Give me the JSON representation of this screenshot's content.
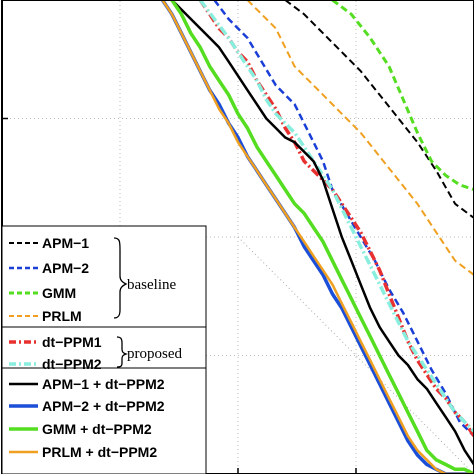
{
  "chart_data": {
    "type": "line",
    "title": "",
    "xlabel": "",
    "ylabel": "",
    "grid": "dotted",
    "xlim": [
      0,
      100
    ],
    "ylim": [
      0,
      100
    ],
    "legend_placement": "lower-left",
    "legend_groups": [
      {
        "label": "baseline",
        "members": [
          "APM−1",
          "APM−2",
          "GMM",
          "PRLM"
        ]
      },
      {
        "label": "proposed",
        "members": [
          "dt−PPM1",
          "dt−PPM2"
        ]
      }
    ],
    "diagonal": {
      "x": [
        50,
        100
      ],
      "y": [
        50,
        0
      ]
    },
    "series": [
      {
        "name": "APM−1",
        "color": "#000000",
        "style": "dashed",
        "width": 2,
        "x": [
          60,
          64,
          68,
          72,
          76,
          80,
          84,
          88,
          92,
          96,
          100
        ],
        "y": [
          100,
          97,
          93,
          89,
          85,
          80,
          75,
          70,
          64,
          57,
          54
        ]
      },
      {
        "name": "APM−2",
        "color": "#1a3fd6",
        "style": "dashed",
        "width": 2.5,
        "x": [
          45,
          48,
          52,
          55,
          58,
          62,
          65,
          68,
          70,
          73,
          76,
          79,
          82,
          85,
          88,
          91,
          94,
          97,
          100
        ],
        "y": [
          100,
          96,
          92,
          87,
          82,
          78,
          72,
          66,
          60,
          55,
          50,
          45,
          39,
          34,
          28,
          22,
          17,
          11,
          8
        ]
      },
      {
        "name": "GMM",
        "color": "#55dd22",
        "style": "dashed",
        "width": 3,
        "x": [
          70,
          74,
          78,
          82,
          85,
          88,
          91,
          94,
          97,
          100
        ],
        "y": [
          100,
          97,
          92,
          86,
          79,
          72,
          66,
          63,
          61,
          60
        ]
      },
      {
        "name": "PRLM",
        "color": "#f0a020",
        "style": "dashed",
        "width": 2,
        "x": [
          52,
          55,
          58,
          60,
          62,
          65,
          68,
          72,
          76,
          80,
          84,
          88,
          92,
          96,
          100
        ],
        "y": [
          100,
          97,
          94,
          90,
          86,
          83,
          80,
          76,
          72,
          67,
          62,
          57,
          51,
          45,
          42
        ]
      },
      {
        "name": "dt−PPM1",
        "color": "#e83030",
        "style": "dashdot",
        "width": 3.5,
        "x": [
          42,
          44,
          46,
          48,
          50,
          52,
          54,
          56,
          58,
          60,
          62,
          64,
          66,
          68,
          70,
          72,
          74,
          76,
          78,
          80,
          82,
          84,
          86,
          88,
          90,
          92,
          94,
          96,
          98,
          100
        ],
        "y": [
          100,
          97,
          94,
          92,
          89,
          87,
          83,
          80,
          77,
          73,
          70,
          66,
          64,
          62,
          60,
          57,
          54,
          51,
          47,
          43,
          38,
          33,
          28,
          24,
          21,
          18,
          16,
          13,
          11,
          8
        ]
      },
      {
        "name": "dt−PPM2",
        "color": "#88eedd",
        "style": "dashdot",
        "width": 3.5,
        "x": [
          42,
          45,
          48,
          50,
          52,
          54,
          56,
          58,
          60,
          62,
          64,
          66,
          68,
          70,
          72,
          74,
          76,
          78,
          80,
          82,
          84,
          86,
          88,
          90,
          92,
          94,
          96,
          98,
          100
        ],
        "y": [
          100,
          96,
          92,
          89,
          86,
          83,
          79,
          76,
          74,
          72,
          69,
          66,
          63,
          60,
          56,
          52,
          48,
          44,
          40,
          36,
          32,
          28,
          25,
          22,
          19,
          16,
          13,
          11,
          9
        ]
      },
      {
        "name": "APM−1 + dt−PPM2",
        "color": "#000000",
        "style": "solid",
        "width": 2.5,
        "x": [
          36,
          39,
          42,
          44,
          46,
          48,
          50,
          52,
          54,
          56,
          58,
          60,
          62,
          64,
          66,
          68,
          70,
          72,
          74,
          76,
          78,
          80,
          82,
          84,
          86,
          88,
          90,
          92,
          94,
          96,
          98,
          100
        ],
        "y": [
          100,
          97,
          94,
          92,
          90,
          87,
          84,
          81,
          78,
          75,
          73,
          71,
          70,
          68,
          66,
          62,
          56,
          50,
          45,
          40,
          35,
          31,
          28,
          25,
          23,
          20,
          18,
          15,
          12,
          9,
          5,
          2
        ]
      },
      {
        "name": "APM−2 + dt−PPM2",
        "color": "#1c4fd8",
        "style": "solid",
        "width": 3.5,
        "x": [
          34,
          36,
          38,
          40,
          42,
          44,
          46,
          48,
          50,
          52,
          54,
          56,
          58,
          60,
          62,
          64,
          66,
          68,
          70,
          72,
          74,
          76,
          78,
          80,
          82,
          84,
          86,
          88,
          90,
          92,
          94,
          96,
          98,
          100
        ],
        "y": [
          100,
          97,
          93,
          89,
          85,
          81,
          78,
          74,
          71,
          67,
          64,
          61,
          58,
          55,
          52,
          48,
          45,
          42,
          38,
          35,
          31,
          27,
          23,
          19,
          15,
          11,
          7,
          4,
          2,
          1,
          0,
          0,
          0,
          0
        ]
      },
      {
        "name": "GMM + dt−PPM2",
        "color": "#55dd22",
        "style": "solid",
        "width": 3.5,
        "x": [
          36,
          38,
          40,
          42,
          44,
          46,
          48,
          50,
          52,
          54,
          56,
          58,
          60,
          62,
          64,
          66,
          68,
          70,
          72,
          74,
          76,
          78,
          80,
          82,
          84,
          86,
          88,
          90,
          92,
          94,
          96,
          98,
          100
        ],
        "y": [
          100,
          97,
          93,
          90,
          86,
          83,
          80,
          76,
          73,
          69,
          66,
          63,
          60,
          57,
          55,
          52,
          49,
          45,
          41,
          37,
          33,
          29,
          25,
          21,
          17,
          13,
          9,
          5,
          3,
          2,
          1,
          1,
          0
        ]
      },
      {
        "name": "PRLM + dt−PPM2",
        "color": "#f0a020",
        "style": "solid",
        "width": 2.5,
        "x": [
          34,
          36,
          38,
          40,
          42,
          44,
          46,
          48,
          50,
          52,
          54,
          56,
          58,
          60,
          62,
          64,
          66,
          68,
          70,
          72,
          74,
          76,
          78,
          80,
          82,
          84,
          86,
          88,
          90,
          92,
          94,
          96,
          98,
          100
        ],
        "y": [
          100,
          97,
          93,
          89,
          85,
          81,
          77,
          74,
          70,
          67,
          64,
          61,
          58,
          55,
          52,
          49,
          46,
          43,
          40,
          36,
          32,
          28,
          24,
          20,
          16,
          12,
          8,
          5,
          3,
          1,
          0,
          0,
          0,
          0
        ]
      }
    ]
  }
}
